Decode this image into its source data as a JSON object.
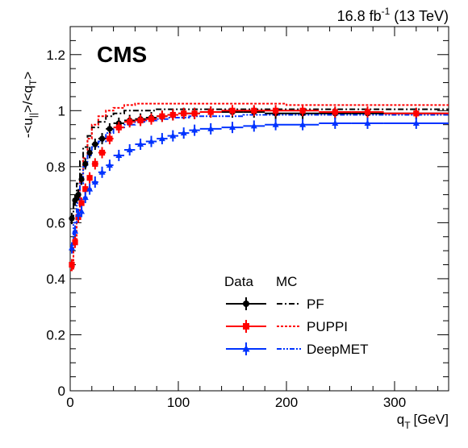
{
  "header": {
    "experiment": "CMS",
    "lumi_value": "16.8 fb",
    "lumi_exp": "-1",
    "energy": "(13 TeV)"
  },
  "colors": {
    "PF": "#000000",
    "PUPPI": "#ff0000",
    "DeepMET": "#0033ff"
  },
  "chart_data": {
    "type": "line",
    "xlim": [
      0,
      350
    ],
    "ylim": [
      0,
      1.3
    ],
    "xticks": [
      0,
      100,
      200,
      300
    ],
    "yticks": [
      0,
      0.2,
      0.4,
      0.6,
      0.8,
      1,
      1.2
    ],
    "xtick_labels": [
      "0",
      "100",
      "200",
      "300"
    ],
    "ytick_labels": [
      "0",
      "0.2",
      "0.4",
      "0.6",
      "0.8",
      "1",
      "1.2"
    ],
    "xlabel_main": "q",
    "xlabel_sub": "T",
    "xlabel_unit": "[GeV]",
    "ylabel": "-<u||>/<qT>",
    "legend": {
      "header_data": "Data",
      "header_mc": "MC",
      "entries": [
        "PF",
        "PUPPI",
        "DeepMET"
      ]
    },
    "bin_edges": [
      0,
      3,
      6,
      9,
      12,
      16,
      20,
      26,
      33,
      40,
      50,
      60,
      70,
      80,
      90,
      100,
      110,
      120,
      140,
      160,
      180,
      200,
      230,
      260,
      290,
      350
    ],
    "series": [
      {
        "name": "PF",
        "data_y": [
          0.615,
          0.68,
          0.7,
          0.755,
          0.81,
          0.85,
          0.88,
          0.9,
          0.935,
          0.955,
          0.965,
          0.97,
          0.975,
          0.98,
          0.985,
          0.99,
          0.99,
          0.995,
          0.995,
          0.995,
          0.99,
          0.99,
          0.99,
          0.99,
          0.99
        ],
        "mc_y": [
          0.62,
          0.68,
          0.74,
          0.82,
          0.87,
          0.91,
          0.94,
          0.96,
          0.98,
          0.99,
          1.0,
          1.0,
          1.0,
          1.005,
          1.005,
          1.005,
          1.005,
          1.005,
          1.005,
          1.005,
          1.005,
          1.005,
          1.005,
          1.005,
          1.005
        ]
      },
      {
        "name": "PUPPI",
        "data_y": [
          0.45,
          0.53,
          0.62,
          0.67,
          0.72,
          0.76,
          0.81,
          0.85,
          0.9,
          0.94,
          0.96,
          0.965,
          0.97,
          0.98,
          0.985,
          0.99,
          0.99,
          0.995,
          1.0,
          1.0,
          1.0,
          1.0,
          0.995,
          0.995,
          0.99
        ],
        "mc_y": [
          0.43,
          0.54,
          0.64,
          0.75,
          0.83,
          0.9,
          0.95,
          0.98,
          1.0,
          1.01,
          1.02,
          1.025,
          1.025,
          1.025,
          1.025,
          1.025,
          1.025,
          1.025,
          1.025,
          1.025,
          1.025,
          1.02,
          1.02,
          1.02,
          1.02
        ]
      },
      {
        "name": "DeepMET",
        "data_y": [
          0.51,
          0.57,
          0.63,
          0.64,
          0.69,
          0.72,
          0.745,
          0.78,
          0.805,
          0.84,
          0.86,
          0.88,
          0.89,
          0.9,
          0.91,
          0.92,
          0.93,
          0.935,
          0.94,
          0.945,
          0.95,
          0.95,
          0.955,
          0.955,
          0.955
        ],
        "mc_y": [
          0.52,
          0.6,
          0.67,
          0.74,
          0.8,
          0.84,
          0.87,
          0.89,
          0.92,
          0.94,
          0.95,
          0.96,
          0.965,
          0.97,
          0.975,
          0.975,
          0.98,
          0.98,
          0.98,
          0.985,
          0.985,
          0.985,
          0.985,
          0.985,
          0.985
        ]
      }
    ]
  }
}
